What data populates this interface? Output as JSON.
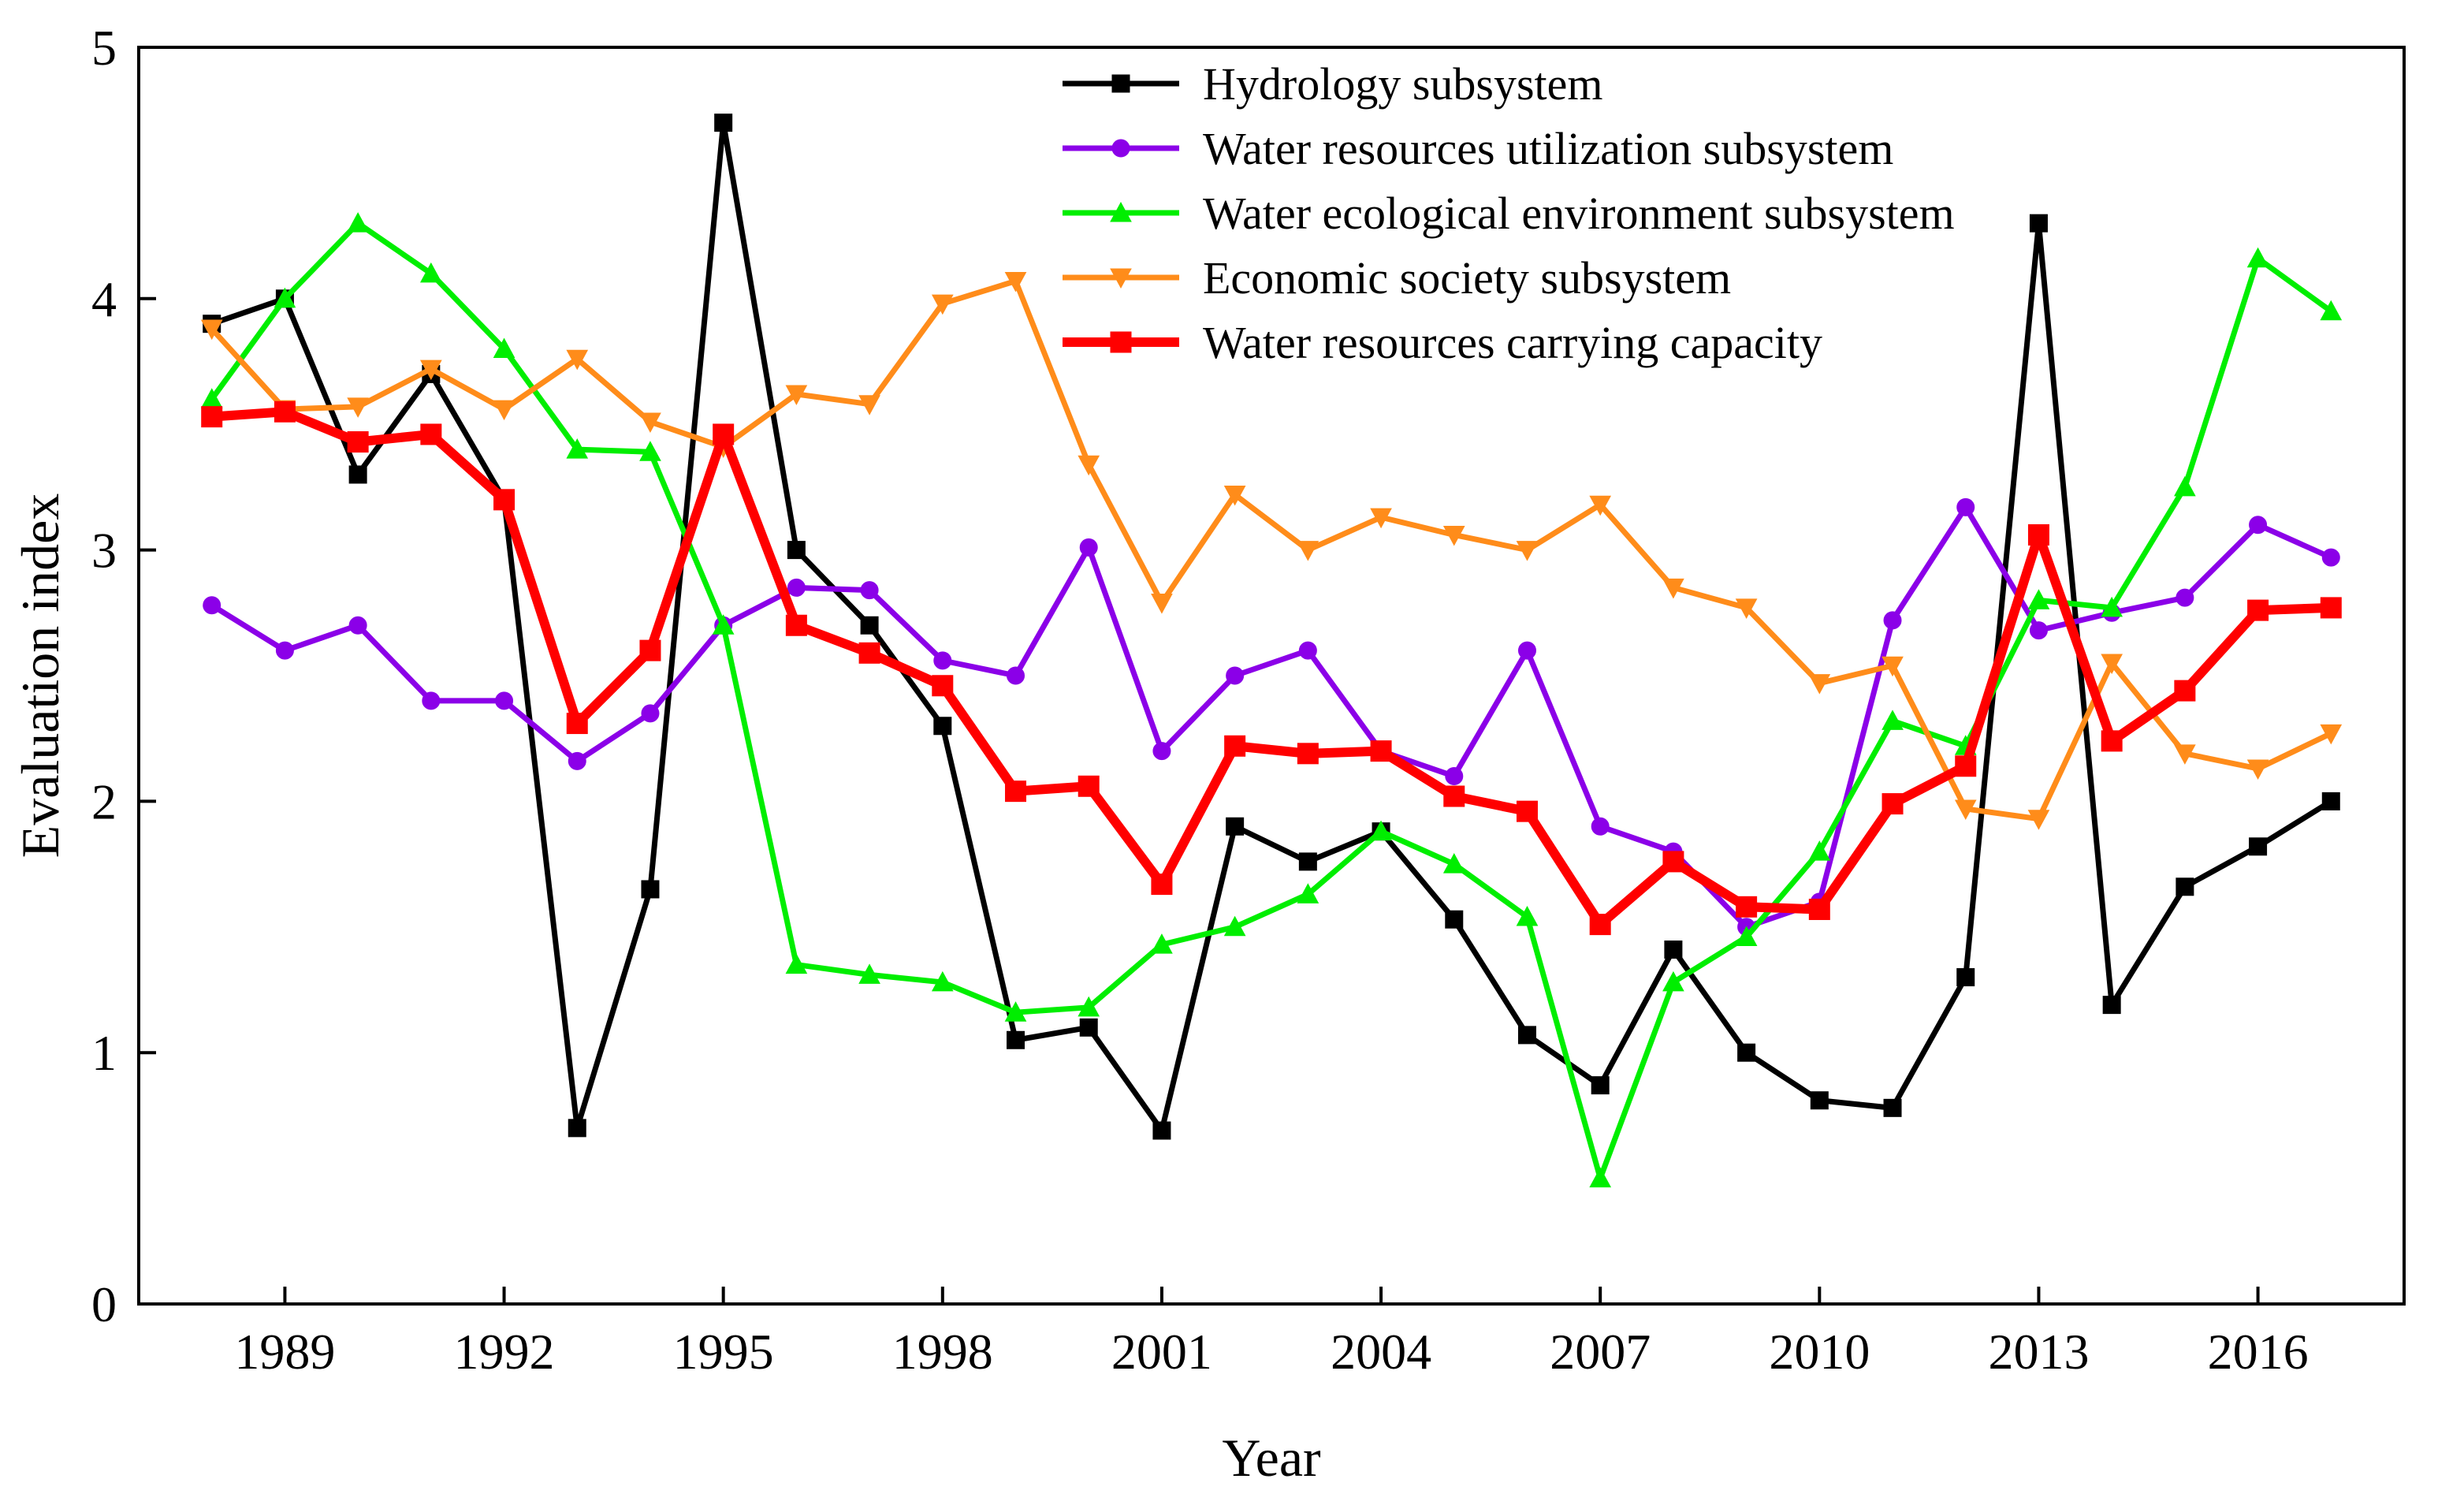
{
  "chart_data": {
    "type": "line",
    "title": "",
    "xlabel": "Year",
    "ylabel": "Evaluation index",
    "xlim": [
      1987,
      2018
    ],
    "ylim": [
      0,
      5
    ],
    "xticks": [
      1989,
      1992,
      1995,
      1998,
      2001,
      2004,
      2007,
      2010,
      2013,
      2016
    ],
    "yticks": [
      0,
      1,
      2,
      3,
      4,
      5
    ],
    "x": [
      1988,
      1989,
      1990,
      1991,
      1992,
      1993,
      1994,
      1995,
      1996,
      1997,
      1998,
      1999,
      2000,
      2001,
      2002,
      2003,
      2004,
      2005,
      2006,
      2007,
      2008,
      2009,
      2010,
      2011,
      2012,
      2013,
      2014,
      2015,
      2016,
      2017
    ],
    "legend_position": "top-right",
    "series": [
      {
        "name": "Hydrology subsystem",
        "color": "#000000",
        "marker": "square",
        "values": [
          3.9,
          4.0,
          3.3,
          3.7,
          3.2,
          0.7,
          1.65,
          4.7,
          3.0,
          2.7,
          2.3,
          1.05,
          1.1,
          0.69,
          1.9,
          1.76,
          1.88,
          1.53,
          1.07,
          0.87,
          1.41,
          1.0,
          0.81,
          0.78,
          1.3,
          4.3,
          1.19,
          1.66,
          1.82,
          2.0
        ]
      },
      {
        "name": "Water resources utilization subsystem",
        "color": "#8B00E8",
        "marker": "circle",
        "values": [
          2.78,
          2.6,
          2.7,
          2.4,
          2.4,
          2.16,
          2.35,
          2.7,
          2.85,
          2.84,
          2.56,
          2.5,
          3.01,
          2.2,
          2.5,
          2.6,
          2.2,
          2.1,
          2.6,
          1.9,
          1.8,
          1.5,
          1.6,
          2.72,
          3.17,
          2.68,
          2.75,
          2.81,
          3.1,
          2.97
        ]
      },
      {
        "name": "Water ecological environment subsystem",
        "color": "#00EE00",
        "marker": "triangle-up",
        "values": [
          3.6,
          4.0,
          4.3,
          4.1,
          3.8,
          3.4,
          3.39,
          2.7,
          1.35,
          1.31,
          1.28,
          1.16,
          1.18,
          1.43,
          1.5,
          1.63,
          1.88,
          1.75,
          1.54,
          0.5,
          1.28,
          1.46,
          1.8,
          2.32,
          2.22,
          2.8,
          2.77,
          3.25,
          4.16,
          3.95
        ]
      },
      {
        "name": "Economic society subsystem",
        "color": "#FF8C1A",
        "marker": "triangle-down",
        "values": [
          3.88,
          3.56,
          3.57,
          3.72,
          3.56,
          3.76,
          3.51,
          3.41,
          3.62,
          3.58,
          3.98,
          4.07,
          3.34,
          2.79,
          3.22,
          3.0,
          3.13,
          3.06,
          3.0,
          3.18,
          2.85,
          2.77,
          2.47,
          2.54,
          1.97,
          1.93,
          2.55,
          2.19,
          2.13,
          2.27
        ]
      },
      {
        "name": "Water resources carrying capacity",
        "color": "#FF0000",
        "marker": "square",
        "values": [
          3.53,
          3.55,
          3.43,
          3.46,
          3.2,
          2.31,
          2.6,
          3.46,
          2.7,
          2.59,
          2.46,
          2.04,
          2.06,
          1.67,
          2.22,
          2.19,
          2.2,
          2.02,
          1.96,
          1.51,
          1.76,
          1.58,
          1.57,
          1.99,
          2.14,
          3.06,
          2.24,
          2.44,
          2.76,
          2.77
        ]
      }
    ]
  }
}
